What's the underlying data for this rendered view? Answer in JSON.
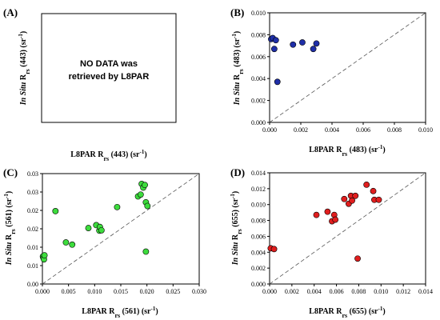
{
  "chart_data": [
    {
      "panel": "(A)",
      "type": "scatter",
      "no_data_text": [
        "NO DATA was",
        "retrieved by L8PAR"
      ],
      "xlabel": "L8PAR R",
      "xlabel_sub": "rs",
      "xlabel_tail": " (443) (sr",
      "ylabel_italic": "In Situ",
      "ylabel": " R",
      "ylabel_sub": "rs",
      "ylabel_tail": " (443) (sr",
      "unit_sup": "-1",
      "close_paren": ")",
      "points": [],
      "xlim": null,
      "ylim": null
    },
    {
      "panel": "(B)",
      "type": "scatter",
      "color": "#1f2fa8",
      "xlabel": "L8PAR R",
      "xlabel_sub": "rs",
      "xlabel_tail": " (483) (sr",
      "ylabel_italic": "In Situ",
      "ylabel": " R",
      "ylabel_sub": "rs",
      "ylabel_tail": " (483) (sr",
      "unit_sup": "-1",
      "close_paren": ")",
      "xlim": [
        0,
        0.01
      ],
      "ylim": [
        0,
        0.01
      ],
      "xticks": [
        "0.000",
        "0.002",
        "0.004",
        "0.006",
        "0.008",
        "0.010"
      ],
      "yticks": [
        "0.000",
        "0.002",
        "0.004",
        "0.006",
        "0.008",
        "0.010"
      ],
      "one_to_one_line": true,
      "points": [
        [
          0.0001,
          0.0076
        ],
        [
          0.0002,
          0.0077
        ],
        [
          0.0003,
          0.0067
        ],
        [
          0.0004,
          0.0075
        ],
        [
          0.0005,
          0.0037
        ],
        [
          0.0015,
          0.0071
        ],
        [
          0.0021,
          0.0073
        ],
        [
          0.0028,
          0.0067
        ],
        [
          0.003,
          0.0072
        ]
      ]
    },
    {
      "panel": "(C)",
      "type": "scatter",
      "color": "#3ddc3d",
      "xlabel": "L8PAR R",
      "xlabel_sub": "rs",
      "xlabel_tail": " (561) (sr",
      "ylabel_italic": "In Situ",
      "ylabel": " R",
      "ylabel_sub": "rs",
      "ylabel_tail": " (561) (sr",
      "unit_sup": "-1",
      "close_paren": ")",
      "xlim": [
        0,
        0.03
      ],
      "ylim": [
        0,
        0.03
      ],
      "xticks": [
        "0.000",
        "0.005",
        "0.010",
        "0.015",
        "0.020",
        "0.025",
        "0.030"
      ],
      "yticks": [
        "0.00",
        "0.01",
        "0.01",
        "0.02",
        "0.02",
        "0.03",
        "0.03"
      ],
      "one_to_one_line": true,
      "points": [
        [
          0.0001,
          0.0075
        ],
        [
          0.0002,
          0.0071
        ],
        [
          0.0003,
          0.0067
        ],
        [
          0.0004,
          0.0078
        ],
        [
          0.0025,
          0.0198
        ],
        [
          0.0045,
          0.0113
        ],
        [
          0.0057,
          0.0107
        ],
        [
          0.0088,
          0.0152
        ],
        [
          0.0103,
          0.016
        ],
        [
          0.0109,
          0.0145
        ],
        [
          0.011,
          0.0155
        ],
        [
          0.0113,
          0.0146
        ],
        [
          0.0143,
          0.0209
        ],
        [
          0.0183,
          0.0238
        ],
        [
          0.0188,
          0.0243
        ],
        [
          0.019,
          0.0272
        ],
        [
          0.0193,
          0.0262
        ],
        [
          0.0196,
          0.0269
        ],
        [
          0.0198,
          0.0222
        ],
        [
          0.0198,
          0.0088
        ],
        [
          0.0201,
          0.0212
        ]
      ]
    },
    {
      "panel": "(D)",
      "type": "scatter",
      "color": "#e01e1e",
      "xlabel": "L8PAR R",
      "xlabel_sub": "rs",
      "xlabel_tail": " (655) (sr",
      "ylabel_italic": "In Situ",
      "ylabel": " R",
      "ylabel_sub": "rs",
      "ylabel_tail": " (655) (sr",
      "unit_sup": "-1",
      "close_paren": ")",
      "xlim": [
        0,
        0.014
      ],
      "ylim": [
        0,
        0.014
      ],
      "xticks": [
        "0.000",
        "0.002",
        "0.004",
        "0.006",
        "0.008",
        "0.010",
        "0.012",
        "0.014"
      ],
      "yticks": [
        "0.000",
        "0.002",
        "0.004",
        "0.006",
        "0.008",
        "0.010",
        "0.012",
        "0.014"
      ],
      "one_to_one_line": true,
      "points": [
        [
          0.0001,
          0.0045
        ],
        [
          0.0004,
          0.0044
        ],
        [
          0.0042,
          0.0087
        ],
        [
          0.0052,
          0.0091
        ],
        [
          0.0056,
          0.0079
        ],
        [
          0.0058,
          0.0087
        ],
        [
          0.0059,
          0.0081
        ],
        [
          0.0067,
          0.0107
        ],
        [
          0.0071,
          0.0101
        ],
        [
          0.0073,
          0.0111
        ],
        [
          0.0074,
          0.0105
        ],
        [
          0.0077,
          0.0111
        ],
        [
          0.0079,
          0.0032
        ],
        [
          0.0087,
          0.0125
        ],
        [
          0.0093,
          0.0117
        ],
        [
          0.0094,
          0.0106
        ],
        [
          0.0098,
          0.0106
        ]
      ]
    }
  ]
}
